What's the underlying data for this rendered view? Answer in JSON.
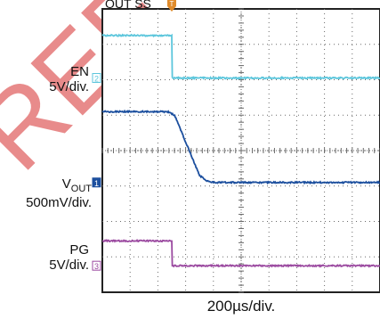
{
  "chart_data": {
    "type": "line",
    "title": "",
    "header_text": "OUT SS",
    "watermark": "REF",
    "timebase": "200µs/div.",
    "grid": {
      "on": true,
      "divisions_x": 10,
      "divisions_y": 8
    },
    "x_unit": "div",
    "xlim": [
      0,
      10
    ],
    "trigger_position_div": 2.5,
    "trigger_marker": "T",
    "series": [
      {
        "name": "EN",
        "scale": "5V/div.",
        "channel": "2",
        "color": "#5cc6dc",
        "x": [
          0,
          2.5,
          2.52,
          10
        ],
        "y_div": [
          7.25,
          7.25,
          6.05,
          6.05
        ]
      },
      {
        "name": "VOUT",
        "scale": "500mV/div.",
        "channel": "1",
        "color": "#1c4f9e",
        "x": [
          0,
          2.35,
          2.6,
          3.5,
          3.75,
          4.0,
          10
        ],
        "y_div": [
          5.1,
          5.1,
          5.0,
          3.3,
          3.15,
          3.1,
          3.1
        ]
      },
      {
        "name": "PG",
        "scale": "5V/div.",
        "channel": "3",
        "color": "#9b4aa0",
        "x": [
          0,
          2.5,
          2.52,
          10
        ],
        "y_div": [
          1.45,
          1.45,
          0.75,
          0.75
        ]
      }
    ],
    "labels": {
      "en_name": "EN",
      "en_scale": "5V/div.",
      "vout_main": "V",
      "vout_sub": "OUT",
      "vout_scale": "500mV/div.",
      "pg_name": "PG",
      "pg_scale": "5V/div."
    },
    "colors": {
      "grid": "#6a6a6a",
      "frame": "#222222",
      "trigger": "#e08b2a",
      "watermark": "#e06464"
    }
  }
}
